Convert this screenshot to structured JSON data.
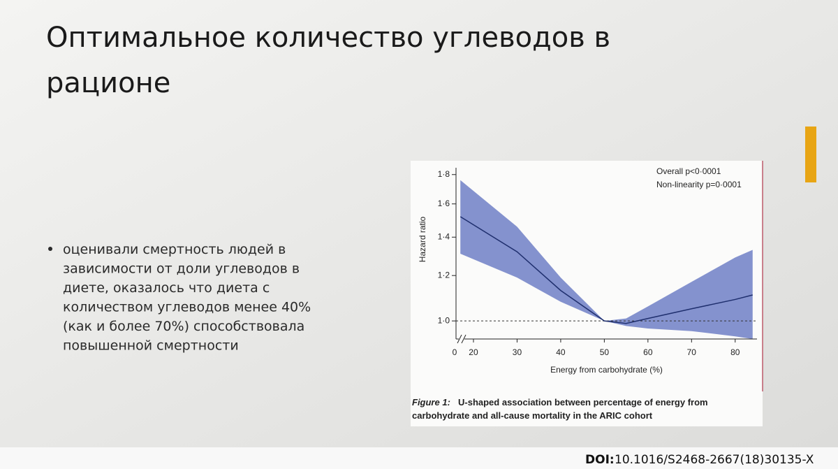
{
  "slide": {
    "title_lines": [
      "Оптимальное количество углеводов в",
      "рационе"
    ],
    "bullet_lines": [
      "оценивали смертность людей в",
      "зависимости от доли углеводов в",
      "диете, оказалось что диета с",
      "количеством углеводов менее 40%",
      "(как и более 70%) способствовала",
      "повышенной смертности"
    ],
    "doi_label": "DOI:",
    "doi": "10.1016/S2468-2667(18)30135-X"
  },
  "chart_data": {
    "type": "line-band",
    "y_label": "Hazard ratio",
    "x_label": "Energy from carbohydrate (%)",
    "annotations": [
      "Overall p<0·0001",
      "Non-linearity p=0·0001"
    ],
    "caption_label": "Figure 1:",
    "caption_lines": [
      "U-shaped association between percentage of energy from",
      "carbohydrate and all-cause mortality in the ARIC cohort"
    ],
    "x": [
      17,
      30,
      40,
      50,
      55,
      60,
      70,
      80,
      84
    ],
    "values": [
      1.52,
      1.32,
      1.13,
      1.0,
      0.99,
      1.01,
      1.05,
      1.09,
      1.11
    ],
    "upper": [
      1.76,
      1.46,
      1.19,
      1.0,
      1.01,
      1.06,
      1.17,
      1.29,
      1.33
    ],
    "lower": [
      1.31,
      1.19,
      1.08,
      1.0,
      0.98,
      0.97,
      0.96,
      0.94,
      0.93
    ],
    "color": "#1f2f6e",
    "band_color": "#6f7fc6",
    "reference_line": 1,
    "log_y": true,
    "xlim": [
      16,
      85
    ],
    "ylim": [
      0.93,
      1.85
    ],
    "xticks": [
      20,
      30,
      40,
      50,
      60,
      70,
      80
    ],
    "x_break_label": "0",
    "yticks": [
      {
        "value": 1.0,
        "label": "1·0"
      },
      {
        "value": 1.2,
        "label": "1·2"
      },
      {
        "value": 1.4,
        "label": "1·4"
      },
      {
        "value": 1.6,
        "label": "1·6"
      },
      {
        "value": 1.8,
        "label": "1·8"
      }
    ]
  }
}
